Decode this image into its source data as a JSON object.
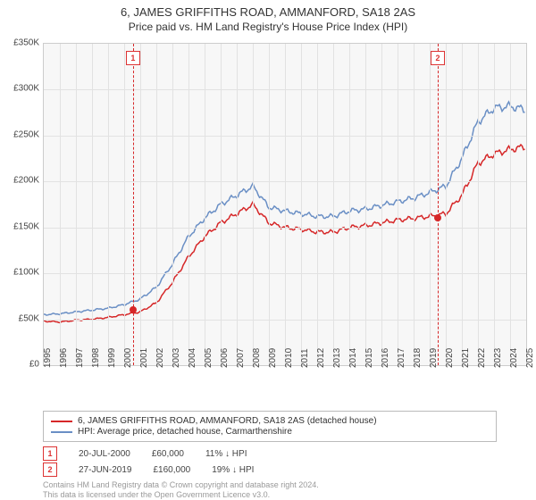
{
  "title_line1": "6, JAMES GRIFFITHS ROAD, AMMANFORD, SA18 2AS",
  "title_line2": "Price paid vs. HM Land Registry's House Price Index (HPI)",
  "chart": {
    "type": "line",
    "background_color": "#f7f7f7",
    "grid_color": "#e2e2e2",
    "border_color": "#cccccc",
    "x_years": [
      1995,
      1996,
      1997,
      1998,
      1999,
      2000,
      2001,
      2002,
      2003,
      2004,
      2005,
      2006,
      2007,
      2008,
      2009,
      2010,
      2011,
      2012,
      2013,
      2014,
      2015,
      2016,
      2017,
      2018,
      2019,
      2020,
      2021,
      2022,
      2023,
      2024,
      2025
    ],
    "xlim": [
      1995,
      2025
    ],
    "ylim": [
      0,
      350000
    ],
    "ytick_step": 50000,
    "ytick_labels": [
      "£0",
      "£50K",
      "£100K",
      "£150K",
      "£200K",
      "£250K",
      "£300K",
      "£350K"
    ],
    "series": [
      {
        "name": "property",
        "legend": "6, JAMES GRIFFITHS ROAD, AMMANFORD, SA18 2AS (detached house)",
        "color": "#d62728",
        "width": 1.5,
        "values": [
          48,
          47,
          49,
          50,
          52,
          55,
          58,
          68,
          90,
          118,
          140,
          155,
          165,
          175,
          155,
          150,
          148,
          145,
          145,
          150,
          152,
          155,
          158,
          160,
          162,
          165,
          185,
          220,
          230,
          235,
          238
        ]
      },
      {
        "name": "hpi",
        "legend": "HPI: Average price, detached house, Carmarthenshire",
        "color": "#6a8fc5",
        "width": 1.5,
        "values": [
          55,
          56,
          58,
          60,
          62,
          66,
          72,
          85,
          110,
          140,
          160,
          175,
          185,
          195,
          172,
          168,
          165,
          162,
          162,
          168,
          170,
          174,
          178,
          182,
          188,
          195,
          225,
          265,
          280,
          282,
          278
        ]
      }
    ],
    "sale_markers": [
      {
        "n": "1",
        "year": 2000.55,
        "price": 60000
      },
      {
        "n": "2",
        "year": 2019.5,
        "price": 160000
      }
    ],
    "marker_color": "#d62728",
    "label_fontsize": 10,
    "label_color": "#444444"
  },
  "transactions": [
    {
      "n": "1",
      "date": "20-JUL-2000",
      "price": "£60,000",
      "diff": "11% ↓ HPI"
    },
    {
      "n": "2",
      "date": "27-JUN-2019",
      "price": "£160,000",
      "diff": "19% ↓ HPI"
    }
  ],
  "footer_line1": "Contains HM Land Registry data © Crown copyright and database right 2024.",
  "footer_line2": "This data is licensed under the Open Government Licence v3.0."
}
